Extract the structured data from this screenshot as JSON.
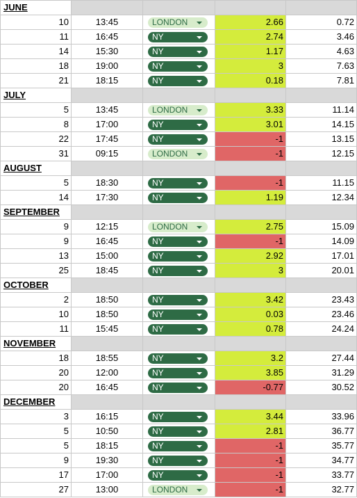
{
  "options": [
    "NY",
    "LONDON"
  ],
  "months": [
    {
      "name": "JUNE",
      "rows": [
        {
          "day": "10",
          "time": "13:45",
          "session": "LONDON",
          "result": "2.66",
          "total": "0.72"
        },
        {
          "day": "11",
          "time": "16:45",
          "session": "NY",
          "result": "2.74",
          "total": "3.46"
        },
        {
          "day": "14",
          "time": "15:30",
          "session": "NY",
          "result": "1.17",
          "total": "4.63"
        },
        {
          "day": "18",
          "time": "19:00",
          "session": "NY",
          "result": "3",
          "total": "7.63"
        },
        {
          "day": "21",
          "time": "18:15",
          "session": "NY",
          "result": "0.18",
          "total": "7.81"
        }
      ]
    },
    {
      "name": "JULY",
      "rows": [
        {
          "day": "5",
          "time": "13:45",
          "session": "LONDON",
          "result": "3.33",
          "total": "11.14"
        },
        {
          "day": "8",
          "time": "17:00",
          "session": "NY",
          "result": "3.01",
          "total": "14.15"
        },
        {
          "day": "22",
          "time": "17:45",
          "session": "NY",
          "result": "-1",
          "total": "13.15"
        },
        {
          "day": "31",
          "time": "09:15",
          "session": "LONDON",
          "result": "-1",
          "total": "12.15"
        }
      ]
    },
    {
      "name": "AUGUST",
      "rows": [
        {
          "day": "5",
          "time": "18:30",
          "session": "NY",
          "result": "-1",
          "total": "11.15"
        },
        {
          "day": "14",
          "time": "17:30",
          "session": "NY",
          "result": "1.19",
          "total": "12.34"
        }
      ]
    },
    {
      "name": "SEPTEMBER",
      "rows": [
        {
          "day": "9",
          "time": "12:15",
          "session": "LONDON",
          "result": "2.75",
          "total": "15.09"
        },
        {
          "day": "9",
          "time": "16:45",
          "session": "NY",
          "result": "-1",
          "total": "14.09"
        },
        {
          "day": "13",
          "time": "15:00",
          "session": "NY",
          "result": "2.92",
          "total": "17.01"
        },
        {
          "day": "25",
          "time": "18:45",
          "session": "NY",
          "result": "3",
          "total": "20.01"
        }
      ]
    },
    {
      "name": "OCTOBER",
      "rows": [
        {
          "day": "2",
          "time": "18:50",
          "session": "NY",
          "result": "3.42",
          "total": "23.43"
        },
        {
          "day": "10",
          "time": "18:50",
          "session": "NY",
          "result": "0.03",
          "total": "23.46"
        },
        {
          "day": "11",
          "time": "15:45",
          "session": "NY",
          "result": "0.78",
          "total": "24.24"
        }
      ]
    },
    {
      "name": "NOVEMBER",
      "rows": [
        {
          "day": "18",
          "time": "18:55",
          "session": "NY",
          "result": "3.2",
          "total": "27.44"
        },
        {
          "day": "20",
          "time": "12:00",
          "session": "NY",
          "result": "3.85",
          "total": "31.29"
        },
        {
          "day": "20",
          "time": "16:45",
          "session": "NY",
          "result": "-0.77",
          "total": "30.52"
        }
      ]
    },
    {
      "name": "DECEMBER",
      "rows": [
        {
          "day": "3",
          "time": "16:15",
          "session": "NY",
          "result": "3.44",
          "total": "33.96"
        },
        {
          "day": "5",
          "time": "10:50",
          "session": "NY",
          "result": "2.81",
          "total": "36.77"
        },
        {
          "day": "5",
          "time": "18:15",
          "session": "NY",
          "result": "-1",
          "total": "35.77"
        },
        {
          "day": "9",
          "time": "19:30",
          "session": "NY",
          "result": "-1",
          "total": "34.77"
        },
        {
          "day": "17",
          "time": "17:00",
          "session": "NY",
          "result": "-1",
          "total": "33.77"
        },
        {
          "day": "27",
          "time": "13:00",
          "session": "LONDON",
          "result": "-1",
          "total": "32.77"
        }
      ]
    }
  ],
  "colors": {
    "positive": "#d4ec3c",
    "negative": "#e06666",
    "ny_chip": "#2e6b45",
    "london_chip": "#d7eccb",
    "header_fill": "#d9d9d9"
  }
}
